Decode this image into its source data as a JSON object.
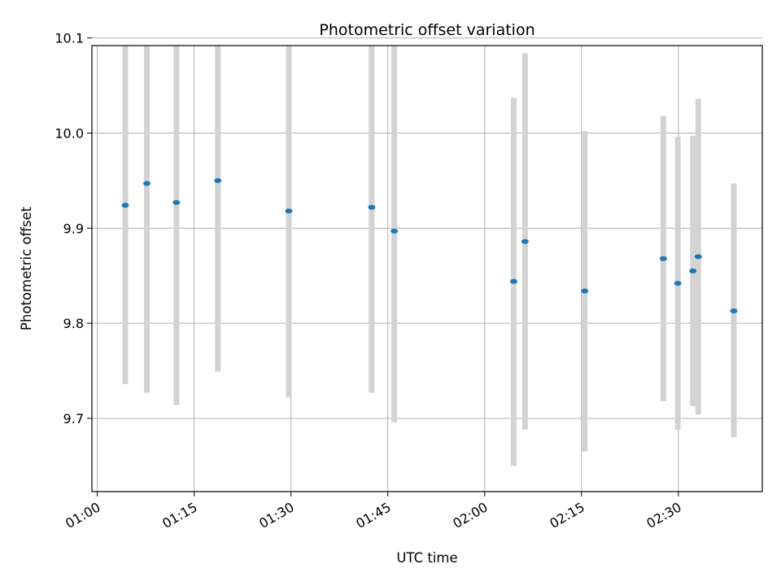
{
  "chart_data": {
    "type": "scatter",
    "title": "Photometric offset variation",
    "xlabel": "UTC time",
    "ylabel": "Photometric offset",
    "grid": true,
    "x_unit": "UTC time (HH:MM)",
    "xlim": [
      "00:59:10",
      "02:43:00"
    ],
    "ylim": [
      9.623,
      10.092
    ],
    "x_ticks": [
      "01:00",
      "01:15",
      "01:30",
      "01:45",
      "02:00",
      "02:15",
      "02:30"
    ],
    "y_ticks": [
      "9.7",
      "9.8",
      "9.9",
      "10.0",
      "10.1"
    ],
    "marker_color": "#1f77b4",
    "errorbar_color": "#d3d3d3",
    "points": [
      {
        "t": "01:04:20",
        "y": 9.924,
        "lo": 9.736,
        "hi": 10.112
      },
      {
        "t": "01:07:40",
        "y": 9.947,
        "lo": 9.727,
        "hi": 10.167
      },
      {
        "t": "01:12:15",
        "y": 9.927,
        "lo": 9.714,
        "hi": 10.14
      },
      {
        "t": "01:18:40",
        "y": 9.95,
        "lo": 9.749,
        "hi": 10.151
      },
      {
        "t": "01:29:40",
        "y": 9.918,
        "lo": 9.722,
        "hi": 10.114
      },
      {
        "t": "01:42:30",
        "y": 9.922,
        "lo": 9.727,
        "hi": 10.117
      },
      {
        "t": "01:46:00",
        "y": 9.897,
        "lo": 9.696,
        "hi": 10.099
      },
      {
        "t": "02:04:30",
        "y": 9.844,
        "lo": 9.65,
        "hi": 10.037
      },
      {
        "t": "02:06:15",
        "y": 9.886,
        "lo": 9.688,
        "hi": 10.084
      },
      {
        "t": "02:15:30",
        "y": 9.834,
        "lo": 9.665,
        "hi": 10.002
      },
      {
        "t": "02:27:40",
        "y": 9.868,
        "lo": 9.718,
        "hi": 10.018
      },
      {
        "t": "02:29:55",
        "y": 9.842,
        "lo": 9.688,
        "hi": 9.996
      },
      {
        "t": "02:32:15",
        "y": 9.855,
        "lo": 9.713,
        "hi": 9.997
      },
      {
        "t": "02:33:05",
        "y": 9.87,
        "lo": 9.704,
        "hi": 10.036
      },
      {
        "t": "02:38:35",
        "y": 9.813,
        "lo": 9.68,
        "hi": 9.947
      }
    ]
  }
}
